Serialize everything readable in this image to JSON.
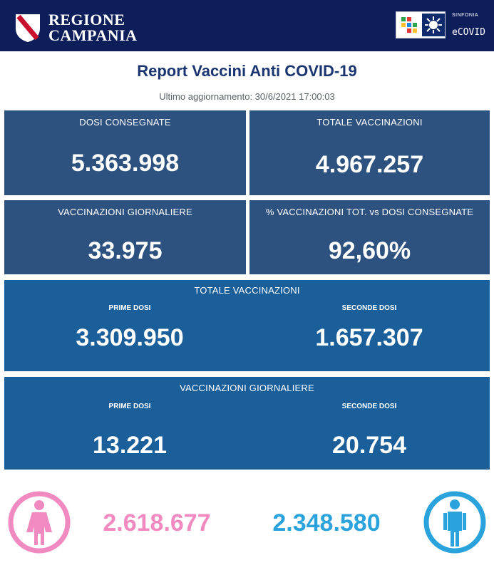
{
  "header": {
    "region_line1": "REGIONE",
    "region_line2": "CAMPANIA",
    "brand_small": "SINFONIA",
    "brand_name": "eCOVID",
    "color_header_bg": "#0d1e5b"
  },
  "title": "Report Vaccini Anti COVID-19",
  "last_update": "Ultimo aggiornamento: 30/6/2021  17:00:03",
  "cards": {
    "doses_delivered": {
      "label": "DOSI  CONSEGNATE",
      "value": "5.363.998"
    },
    "total_vaccinations": {
      "label": "TOTALE VACCINAZIONI",
      "value": "4.967.257"
    },
    "daily_vaccinations": {
      "label": "VACCINAZIONI GIORNALIERE",
      "value": "33.975"
    },
    "percent_vs_delivered": {
      "label": "% VACCINAZIONI TOT. vs DOSI CONSEGNATE",
      "value": "92,60%"
    }
  },
  "total_breakdown": {
    "label": "TOTALE VACCINAZIONI",
    "first_label": "PRIME DOSI",
    "first_value": "3.309.950",
    "second_label": "SECONDE DOSI",
    "second_value": "1.657.307"
  },
  "daily_breakdown": {
    "label": "VACCINAZIONI GIORNALIERE",
    "first_label": "PRIME DOSI",
    "first_value": "13.221",
    "second_label": "SECONDE DOSI",
    "second_value": "20.754"
  },
  "gender": {
    "female_value": "2.618.677",
    "male_value": "2.348.580",
    "female_icon": "female-person-icon",
    "male_icon": "male-person-icon",
    "female_color": "#f08ac0",
    "male_color": "#2aa3dd"
  },
  "colors": {
    "card_dark": "#2d527f",
    "card_blue": "#1a5e9a",
    "title": "#1a3570"
  }
}
